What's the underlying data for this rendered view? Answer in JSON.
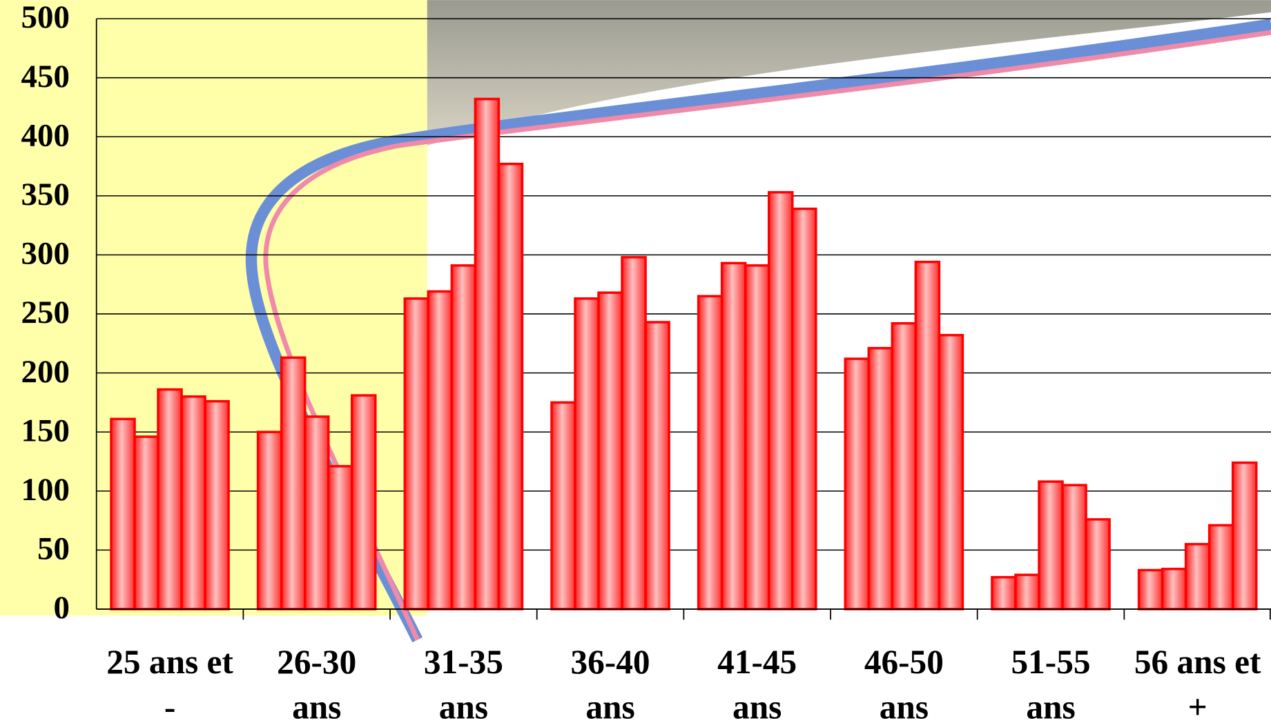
{
  "chart_data": {
    "type": "bar",
    "categories": [
      "25 ans et -",
      "26-30 ans",
      "31-35 ans",
      "36-40 ans",
      "41-45 ans",
      "46-50 ans",
      "51-55 ans",
      "56 ans et +"
    ],
    "series": [
      {
        "color": "#ff0000",
        "values": [
          161,
          150,
          263,
          175,
          265,
          212,
          27,
          33
        ]
      },
      {
        "color": "#ff0000",
        "values": [
          146,
          213,
          269,
          263,
          293,
          221,
          29,
          34
        ]
      },
      {
        "color": "#ff0000",
        "values": [
          186,
          163,
          291,
          268,
          291,
          242,
          108,
          55
        ]
      },
      {
        "color": "#ff0000",
        "values": [
          180,
          121,
          432,
          298,
          353,
          294,
          105,
          71
        ]
      },
      {
        "color": "#ff0000",
        "values": [
          176,
          181,
          377,
          243,
          339,
          232,
          76,
          124
        ]
      }
    ],
    "ylim": [
      0,
      500
    ],
    "yticks": [
      0,
      50,
      100,
      150,
      200,
      250,
      300,
      350,
      400,
      450,
      500
    ],
    "grid": true
  }
}
